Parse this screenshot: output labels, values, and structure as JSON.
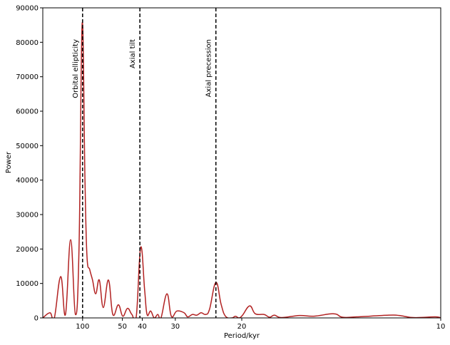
{
  "chart_data": {
    "type": "line",
    "x_label": "Period/kyr",
    "y_label": "Power",
    "x": [
      0,
      0.0018,
      0.0029,
      0.0045,
      0.0057,
      0.007,
      0.0082,
      0.0091,
      0.0099,
      0.0106,
      0.0111,
      0.0118,
      0.0125,
      0.0133,
      0.0142,
      0.0152,
      0.0165,
      0.0176,
      0.019,
      0.0201,
      0.0213,
      0.0224,
      0.0235,
      0.0246,
      0.0256,
      0.0262,
      0.0271,
      0.028,
      0.0289,
      0.0297,
      0.0312,
      0.0323,
      0.0337,
      0.0355,
      0.0364,
      0.0376,
      0.0387,
      0.0398,
      0.0409,
      0.0419,
      0.0435,
      0.0448,
      0.0459,
      0.0475,
      0.0484,
      0.0493,
      0.0502,
      0.052,
      0.0534,
      0.0556,
      0.057,
      0.0582,
      0.06,
      0.0645,
      0.0681,
      0.0731,
      0.0753,
      0.0789,
      0.0869,
      0.0896,
      0.0932,
      0.0986,
      0.1
    ],
    "series": [
      {
        "color": "#b22222",
        "values": [
          0,
          1500,
          0,
          12000,
          1000,
          22700,
          1000,
          20000,
          85500,
          40000,
          18000,
          14000,
          11000,
          7000,
          11000,
          3000,
          11000,
          1000,
          3800,
          500,
          2800,
          1000,
          500,
          20500,
          8000,
          1000,
          2000,
          0,
          1000,
          0,
          7000,
          500,
          2000,
          1500,
          300,
          1000,
          800,
          1500,
          1000,
          2500,
          10300,
          4000,
          500,
          0,
          500,
          0,
          800,
          3500,
          1200,
          1000,
          200,
          800,
          100,
          700,
          500,
          1200,
          200,
          300,
          800,
          700,
          100,
          300,
          0
        ]
      }
    ],
    "xlim": [
      0,
      0.1
    ],
    "xticks": [
      {
        "value": 0.01,
        "label": "100"
      },
      {
        "value": 0.02,
        "label": "50"
      },
      {
        "value": 0.025,
        "label": "40"
      },
      {
        "value": 0.0333,
        "label": "30"
      },
      {
        "value": 0.05,
        "label": "20"
      },
      {
        "value": 0.1,
        "label": "10"
      }
    ],
    "ylim": [
      0,
      90000
    ],
    "yticks": [
      0,
      10000,
      20000,
      30000,
      40000,
      50000,
      60000,
      70000,
      80000,
      90000
    ],
    "vlines": [
      {
        "value": 0.01,
        "label": "Orbital ellipticity"
      },
      {
        "value": 0.0244,
        "label": "Axial tilt"
      },
      {
        "value": 0.0435,
        "label": "Axial precession"
      }
    ]
  }
}
